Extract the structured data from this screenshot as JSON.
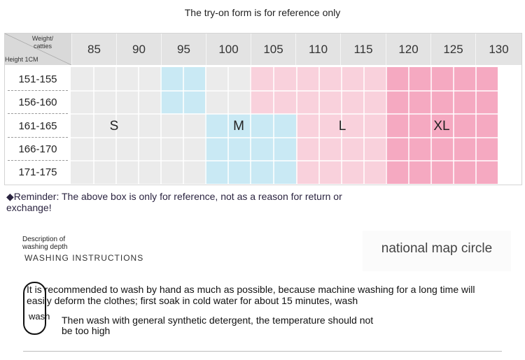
{
  "title": "The try-on form is for reference only",
  "table": {
    "corner_weight": "Weight/\ncatties",
    "corner_height": "Height 1CM",
    "weights": [
      "85",
      "90",
      "95",
      "100",
      "105",
      "110",
      "115",
      "120",
      "125",
      "130"
    ],
    "heights": [
      "151-155",
      "156-160",
      "161-165",
      "166-170",
      "171-175"
    ],
    "sizes": [
      "S",
      "M",
      "L",
      "XL"
    ],
    "colors": {
      "S": "#ebebeb",
      "M": "#c9e9f4",
      "L": "#f9d1dc",
      "XL": "#f5a9c1"
    }
  },
  "reminder": "◆Reminder: The above box is only for reference, not as a reason for return or exchange!",
  "wash": {
    "desc": "Description of\nwashing depth",
    "heading": "WASHING INSTRUCTIONS",
    "badge": "wash",
    "recommend": "It is recommended to wash by hand as much as possible, because machine washing for a long time will easily deform the clothes; first soak in cold water for about 15 minutes, wash",
    "then": "Then wash with general synthetic detergent, the temperature should not be too high"
  },
  "national": "national map circle"
}
